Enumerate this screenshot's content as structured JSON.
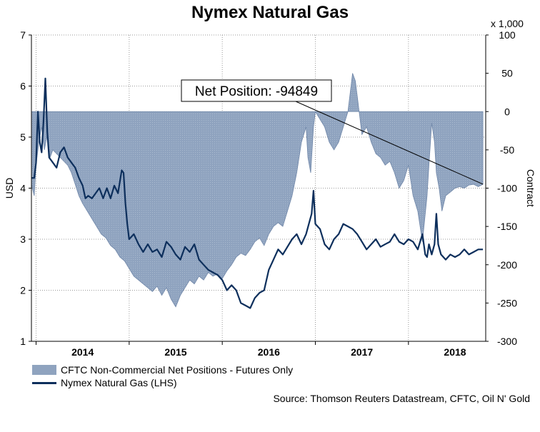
{
  "title": "Nymex Natural Gas",
  "colors": {
    "price_line": "#0d2f5c",
    "area_fill": "#8fa3bf",
    "area_stroke": "#6f86a8",
    "grid": "#9a9a9a"
  },
  "chart_data": {
    "type": "area+line",
    "title": "Nymex Natural Gas",
    "ylabel_left": "USD",
    "ylabel_right": "Contract",
    "right_multiplier_label": "x 1,000",
    "ylim_left": [
      1,
      7
    ],
    "ylim_right": [
      -300,
      100
    ],
    "left_ticks": [
      1,
      2,
      3,
      4,
      5,
      6,
      7
    ],
    "right_ticks": [
      100,
      50,
      0,
      -50,
      -100,
      -150,
      -200,
      -250,
      -300
    ],
    "xlim": [
      2013.45,
      2018.33
    ],
    "year_labels": [
      {
        "label": "2014",
        "x": 2014.0
      },
      {
        "label": "2015",
        "x": 2015.0
      },
      {
        "label": "2016",
        "x": 2016.0
      },
      {
        "label": "2017",
        "x": 2017.0
      },
      {
        "label": "2018",
        "x": 2018.0
      }
    ],
    "year_boundaries": [
      2013.5,
      2014.5,
      2015.5,
      2016.5,
      2017.5
    ],
    "annotation": {
      "text": "Net Position: -94849",
      "target_x": 2018.3,
      "target_y_right": -94.8
    },
    "grid": true,
    "legend_position": "bottom-left",
    "series": [
      {
        "name": "CFTC Non-Commercial Net Positions - Futures Only",
        "axis": "right",
        "kind": "area",
        "points": [
          [
            2013.45,
            -95
          ],
          [
            2013.48,
            -110
          ],
          [
            2013.5,
            -70
          ],
          [
            2013.53,
            -40
          ],
          [
            2013.56,
            -20
          ],
          [
            2013.59,
            -50
          ],
          [
            2013.62,
            -30
          ],
          [
            2013.65,
            -60
          ],
          [
            2013.68,
            -50
          ],
          [
            2013.72,
            -55
          ],
          [
            2013.76,
            -60
          ],
          [
            2013.8,
            -65
          ],
          [
            2013.84,
            -70
          ],
          [
            2013.88,
            -80
          ],
          [
            2013.92,
            -95
          ],
          [
            2013.96,
            -110
          ],
          [
            2014.0,
            -120
          ],
          [
            2014.05,
            -130
          ],
          [
            2014.1,
            -140
          ],
          [
            2014.15,
            -150
          ],
          [
            2014.2,
            -160
          ],
          [
            2014.25,
            -165
          ],
          [
            2014.3,
            -175
          ],
          [
            2014.35,
            -180
          ],
          [
            2014.4,
            -190
          ],
          [
            2014.45,
            -195
          ],
          [
            2014.5,
            -205
          ],
          [
            2014.55,
            -215
          ],
          [
            2014.6,
            -220
          ],
          [
            2014.65,
            -225
          ],
          [
            2014.7,
            -230
          ],
          [
            2014.75,
            -235
          ],
          [
            2014.8,
            -228
          ],
          [
            2014.85,
            -240
          ],
          [
            2014.9,
            -230
          ],
          [
            2014.95,
            -245
          ],
          [
            2015.0,
            -255
          ],
          [
            2015.05,
            -240
          ],
          [
            2015.1,
            -230
          ],
          [
            2015.15,
            -220
          ],
          [
            2015.2,
            -225
          ],
          [
            2015.25,
            -215
          ],
          [
            2015.3,
            -220
          ],
          [
            2015.35,
            -210
          ],
          [
            2015.4,
            -215
          ],
          [
            2015.45,
            -212
          ],
          [
            2015.5,
            -218
          ],
          [
            2015.55,
            -208
          ],
          [
            2015.6,
            -200
          ],
          [
            2015.65,
            -190
          ],
          [
            2015.7,
            -185
          ],
          [
            2015.75,
            -188
          ],
          [
            2015.8,
            -180
          ],
          [
            2015.85,
            -170
          ],
          [
            2015.9,
            -165
          ],
          [
            2015.95,
            -175
          ],
          [
            2016.0,
            -160
          ],
          [
            2016.05,
            -150
          ],
          [
            2016.1,
            -145
          ],
          [
            2016.15,
            -150
          ],
          [
            2016.2,
            -130
          ],
          [
            2016.25,
            -110
          ],
          [
            2016.3,
            -80
          ],
          [
            2016.35,
            -40
          ],
          [
            2016.4,
            -20
          ],
          [
            2016.42,
            -60
          ],
          [
            2016.45,
            -80
          ],
          [
            2016.48,
            -20
          ],
          [
            2016.5,
            0
          ],
          [
            2016.55,
            -10
          ],
          [
            2016.6,
            -20
          ],
          [
            2016.65,
            -40
          ],
          [
            2016.7,
            -50
          ],
          [
            2016.75,
            -40
          ],
          [
            2016.8,
            -20
          ],
          [
            2016.85,
            0
          ],
          [
            2016.88,
            30
          ],
          [
            2016.9,
            50
          ],
          [
            2016.93,
            40
          ],
          [
            2016.96,
            10
          ],
          [
            2017.0,
            -30
          ],
          [
            2017.05,
            -20
          ],
          [
            2017.1,
            -40
          ],
          [
            2017.15,
            -55
          ],
          [
            2017.2,
            -60
          ],
          [
            2017.25,
            -70
          ],
          [
            2017.3,
            -65
          ],
          [
            2017.35,
            -80
          ],
          [
            2017.4,
            -100
          ],
          [
            2017.45,
            -90
          ],
          [
            2017.5,
            -70
          ],
          [
            2017.55,
            -110
          ],
          [
            2017.6,
            -130
          ],
          [
            2017.65,
            -170
          ],
          [
            2017.7,
            -110
          ],
          [
            2017.72,
            -70
          ],
          [
            2017.75,
            -15
          ],
          [
            2017.78,
            -40
          ],
          [
            2017.8,
            -80
          ],
          [
            2017.83,
            -100
          ],
          [
            2017.86,
            -130
          ],
          [
            2017.9,
            -110
          ],
          [
            2017.95,
            -105
          ],
          [
            2018.0,
            -100
          ],
          [
            2018.05,
            -98
          ],
          [
            2018.1,
            -100
          ],
          [
            2018.15,
            -96
          ],
          [
            2018.2,
            -95
          ],
          [
            2018.25,
            -98
          ],
          [
            2018.3,
            -95
          ]
        ]
      },
      {
        "name": "Nymex Natural Gas (LHS)",
        "axis": "left",
        "kind": "line",
        "points": [
          [
            2013.45,
            4.2
          ],
          [
            2013.48,
            4.2
          ],
          [
            2013.5,
            4.5
          ],
          [
            2013.52,
            5.5
          ],
          [
            2013.54,
            4.9
          ],
          [
            2013.56,
            4.7
          ],
          [
            2013.58,
            5.3
          ],
          [
            2013.6,
            6.15
          ],
          [
            2013.62,
            5.1
          ],
          [
            2013.64,
            4.6
          ],
          [
            2013.68,
            4.5
          ],
          [
            2013.72,
            4.4
          ],
          [
            2013.76,
            4.7
          ],
          [
            2013.8,
            4.8
          ],
          [
            2013.84,
            4.6
          ],
          [
            2013.88,
            4.5
          ],
          [
            2013.92,
            4.4
          ],
          [
            2013.96,
            4.2
          ],
          [
            2014.0,
            4.05
          ],
          [
            2014.03,
            3.8
          ],
          [
            2014.06,
            3.85
          ],
          [
            2014.1,
            3.8
          ],
          [
            2014.14,
            3.9
          ],
          [
            2014.18,
            4.0
          ],
          [
            2014.22,
            3.8
          ],
          [
            2014.26,
            4.0
          ],
          [
            2014.3,
            3.8
          ],
          [
            2014.34,
            4.05
          ],
          [
            2014.38,
            3.9
          ],
          [
            2014.42,
            4.35
          ],
          [
            2014.44,
            4.3
          ],
          [
            2014.46,
            3.7
          ],
          [
            2014.48,
            3.3
          ],
          [
            2014.5,
            3.0
          ],
          [
            2014.55,
            3.1
          ],
          [
            2014.6,
            2.9
          ],
          [
            2014.65,
            2.75
          ],
          [
            2014.7,
            2.9
          ],
          [
            2014.75,
            2.75
          ],
          [
            2014.8,
            2.8
          ],
          [
            2014.85,
            2.65
          ],
          [
            2014.9,
            2.95
          ],
          [
            2014.95,
            2.85
          ],
          [
            2015.0,
            2.7
          ],
          [
            2015.05,
            2.6
          ],
          [
            2015.1,
            2.85
          ],
          [
            2015.15,
            2.75
          ],
          [
            2015.2,
            2.9
          ],
          [
            2015.25,
            2.6
          ],
          [
            2015.3,
            2.5
          ],
          [
            2015.35,
            2.4
          ],
          [
            2015.4,
            2.35
          ],
          [
            2015.45,
            2.3
          ],
          [
            2015.5,
            2.2
          ],
          [
            2015.55,
            2.0
          ],
          [
            2015.6,
            2.1
          ],
          [
            2015.65,
            2.0
          ],
          [
            2015.7,
            1.75
          ],
          [
            2015.75,
            1.7
          ],
          [
            2015.8,
            1.65
          ],
          [
            2015.85,
            1.85
          ],
          [
            2015.9,
            1.95
          ],
          [
            2015.95,
            2.0
          ],
          [
            2016.0,
            2.4
          ],
          [
            2016.05,
            2.6
          ],
          [
            2016.1,
            2.8
          ],
          [
            2016.15,
            2.7
          ],
          [
            2016.2,
            2.85
          ],
          [
            2016.25,
            3.0
          ],
          [
            2016.3,
            3.1
          ],
          [
            2016.35,
            2.9
          ],
          [
            2016.4,
            3.1
          ],
          [
            2016.43,
            3.3
          ],
          [
            2016.46,
            3.5
          ],
          [
            2016.48,
            3.95
          ],
          [
            2016.5,
            3.3
          ],
          [
            2016.55,
            3.2
          ],
          [
            2016.6,
            2.9
          ],
          [
            2016.65,
            2.8
          ],
          [
            2016.7,
            3.0
          ],
          [
            2016.75,
            3.1
          ],
          [
            2016.8,
            3.3
          ],
          [
            2016.85,
            3.25
          ],
          [
            2016.9,
            3.2
          ],
          [
            2016.95,
            3.1
          ],
          [
            2017.0,
            2.95
          ],
          [
            2017.05,
            2.8
          ],
          [
            2017.1,
            2.9
          ],
          [
            2017.15,
            3.0
          ],
          [
            2017.2,
            2.85
          ],
          [
            2017.25,
            2.9
          ],
          [
            2017.3,
            2.95
          ],
          [
            2017.35,
            3.1
          ],
          [
            2017.4,
            2.95
          ],
          [
            2017.45,
            2.9
          ],
          [
            2017.5,
            3.0
          ],
          [
            2017.55,
            2.95
          ],
          [
            2017.6,
            2.8
          ],
          [
            2017.65,
            3.1
          ],
          [
            2017.68,
            2.7
          ],
          [
            2017.7,
            2.65
          ],
          [
            2017.72,
            2.9
          ],
          [
            2017.75,
            2.7
          ],
          [
            2017.78,
            2.9
          ],
          [
            2017.8,
            3.5
          ],
          [
            2017.82,
            2.9
          ],
          [
            2017.85,
            2.7
          ],
          [
            2017.9,
            2.6
          ],
          [
            2017.95,
            2.7
          ],
          [
            2018.0,
            2.65
          ],
          [
            2018.05,
            2.7
          ],
          [
            2018.1,
            2.8
          ],
          [
            2018.15,
            2.7
          ],
          [
            2018.2,
            2.75
          ],
          [
            2018.25,
            2.8
          ],
          [
            2018.3,
            2.8
          ]
        ]
      }
    ]
  },
  "legend": {
    "area_label": "CFTC Non-Commercial Net Positions - Futures Only",
    "line_label": "Nymex Natural Gas (LHS)"
  },
  "source": "Source: Thomson Reuters Datastream, CFTC, Oil N' Gold"
}
